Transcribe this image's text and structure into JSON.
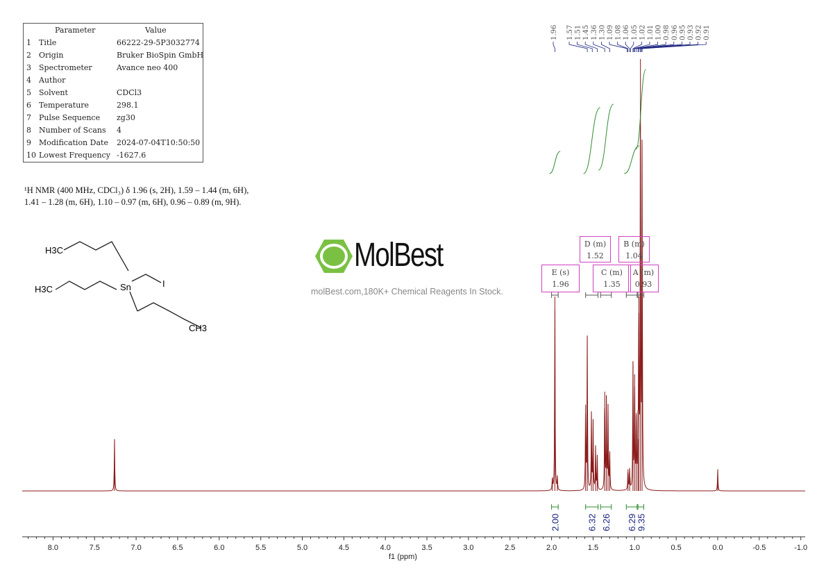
{
  "params": {
    "header": [
      "Parameter",
      "Value"
    ],
    "rows": [
      [
        "1",
        "Title",
        "66222-29-5P3032774"
      ],
      [
        "2",
        "Origin",
        "Bruker BioSpin GmbH"
      ],
      [
        "3",
        "Spectrometer",
        "Avance neo 400"
      ],
      [
        "4",
        "Author",
        ""
      ],
      [
        "5",
        "Solvent",
        "CDCl3"
      ],
      [
        "6",
        "Temperature",
        "298.1"
      ],
      [
        "7",
        "Pulse Sequence",
        "zg30"
      ],
      [
        "8",
        "Number of Scans",
        "4"
      ],
      [
        "9",
        "Modification Date",
        "2024-07-04T10:50:50"
      ],
      [
        "10",
        "Lowest Frequency",
        "-1627.6"
      ]
    ]
  },
  "summary": {
    "line1": "¹H NMR (400 MHz, CDCl₃) δ 1.96 (s, 2H), 1.59 – 1.44 (m, 6H),",
    "line2": "1.41 – 1.28 (m, 6H), 1.10 – 0.97 (m, 6H), 0.96 – 0.89 (m, 9H)."
  },
  "molecule": {
    "labels": [
      "H3C",
      "H3C",
      "Sn",
      "I",
      "CH3"
    ]
  },
  "watermark": {
    "brand": "MolBest",
    "tagline": "molBest.com,180K+ Chemical Reagents In Stock.",
    "color": "#7ac143"
  },
  "chart_data": {
    "type": "line",
    "xlabel": "f1 (ppm)",
    "xlim": [
      8.35,
      -1.05
    ],
    "xticks": [
      "8.0",
      "7.5",
      "7.0",
      "6.5",
      "6.0",
      "5.5",
      "5.0",
      "4.5",
      "4.0",
      "3.5",
      "3.0",
      "2.5",
      "2.0",
      "1.5",
      "1.0",
      "0.5",
      "0.0",
      "-0.5",
      "-1.0"
    ],
    "line_color": "#8b1a1a",
    "integral_color": "#2e8b2e",
    "label_color": "#1a237e",
    "peaks": [
      [
        7.26,
        0.12
      ],
      [
        1.99,
        0.03
      ],
      [
        1.96,
        0.45
      ],
      [
        1.93,
        0.03
      ],
      [
        1.59,
        0.2
      ],
      [
        1.57,
        0.36
      ],
      [
        1.52,
        0.18
      ],
      [
        1.5,
        0.16
      ],
      [
        1.47,
        0.1
      ],
      [
        1.45,
        0.08
      ],
      [
        1.36,
        0.23
      ],
      [
        1.34,
        0.22
      ],
      [
        1.32,
        0.19
      ],
      [
        1.3,
        0.09
      ],
      [
        1.08,
        0.05
      ],
      [
        1.06,
        0.05
      ],
      [
        1.02,
        0.3
      ],
      [
        1.0,
        0.27
      ],
      [
        0.98,
        0.18
      ],
      [
        0.96,
        0.12
      ],
      [
        0.95,
        0.45
      ],
      [
        0.93,
        1.0
      ],
      [
        0.91,
        0.8
      ],
      [
        0.0,
        0.05
      ]
    ],
    "peak_labels": [
      "1.96",
      "1.57",
      "1.51",
      "1.45",
      "1.36",
      "1.30",
      "1.09",
      "1.08",
      "1.06",
      "1.05",
      "1.02",
      "1.01",
      "1.00",
      "0.98",
      "0.96",
      "0.95",
      "0.93",
      "0.92",
      "0.91"
    ],
    "multiplets": [
      {
        "label": "E (s)",
        "shift": "1.96",
        "range": [
          2.0,
          1.92
        ]
      },
      {
        "label": "D (m)",
        "shift": "1.52",
        "range": [
          1.59,
          1.44
        ]
      },
      {
        "label": "C (m)",
        "shift": "1.35",
        "range": [
          1.41,
          1.28
        ]
      },
      {
        "label": "B (m)",
        "shift": "1.04",
        "range": [
          1.1,
          0.97
        ]
      },
      {
        "label": "A (m)",
        "shift": "0.93",
        "range": [
          0.96,
          0.89
        ]
      }
    ],
    "integrals": [
      {
        "value": "2.00",
        "range": [
          2.0,
          1.92
        ]
      },
      {
        "value": "6.32",
        "range": [
          1.59,
          1.44
        ]
      },
      {
        "value": "6.26",
        "range": [
          1.41,
          1.28
        ]
      },
      {
        "value": "6.29",
        "range": [
          1.1,
          0.97
        ]
      },
      {
        "value": "9.35",
        "range": [
          0.96,
          0.89
        ]
      }
    ]
  }
}
